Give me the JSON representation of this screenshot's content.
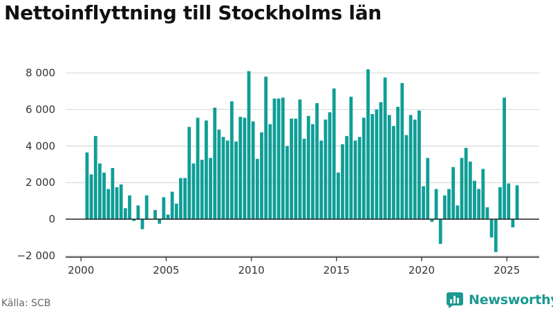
{
  "title": "Nettoinflyttning till Stockholms län",
  "source": "Källa: SCB",
  "brand": {
    "name": "Newsworthy",
    "color": "#1a9990"
  },
  "colors": {
    "bar": "#0f9e96",
    "grid": "#d9d9d9",
    "axis": "#222222"
  },
  "chart_data": {
    "type": "bar",
    "title": "Nettoinflyttning till Stockholms län",
    "xlabel": "",
    "ylabel": "",
    "frequency": "quarterly",
    "x_start": "2000-Q2",
    "x_range": [
      1999.1,
      2026.9
    ],
    "ylim": [
      -2000,
      8400
    ],
    "x_ticks": [
      {
        "label": "2000",
        "value": 2000
      },
      {
        "label": "2005",
        "value": 2005
      },
      {
        "label": "2010",
        "value": 2010
      },
      {
        "label": "2015",
        "value": 2015
      },
      {
        "label": "2020",
        "value": 2020
      },
      {
        "label": "2025",
        "value": 2025
      }
    ],
    "y_ticks": [
      {
        "label": "−2 000",
        "value": -2000
      },
      {
        "label": "0",
        "value": 0
      },
      {
        "label": "2 000",
        "value": 2000
      },
      {
        "label": "4 000",
        "value": 4000
      },
      {
        "label": "6 000",
        "value": 6000
      },
      {
        "label": "8 000",
        "value": 8000
      }
    ],
    "grid": true,
    "legend": "none",
    "series": [
      {
        "values": [
          3650,
          2450,
          4550,
          3050,
          2550,
          1650,
          2800,
          1750,
          1900,
          600,
          1300,
          -100,
          750,
          -550,
          1300,
          0,
          500,
          -250,
          1200,
          250,
          1500,
          850,
          2250,
          2250,
          5050,
          3050,
          5550,
          3250,
          5400,
          3350,
          6100,
          4900,
          4500,
          4300,
          6450,
          4250,
          5600,
          5550,
          8100,
          5350,
          3300,
          4750,
          7800,
          5200,
          6600,
          6600,
          6650,
          4000,
          5500,
          5500,
          6550,
          4400,
          5650,
          5200,
          6350,
          4300,
          5450,
          5850,
          7150,
          2550,
          4100,
          4550,
          6700,
          4300,
          4500,
          5550,
          8200,
          5750,
          6000,
          6400,
          7750,
          5700,
          5100,
          6150,
          7450,
          4600,
          5700,
          5450,
          5950,
          1800,
          3350,
          -150,
          1650,
          -1350,
          1300,
          1650,
          2850,
          750,
          3350,
          3900,
          3150,
          2100,
          1650,
          2750,
          650,
          -1000,
          -1800,
          1750,
          6650,
          1950,
          -450,
          1850
        ]
      }
    ]
  }
}
